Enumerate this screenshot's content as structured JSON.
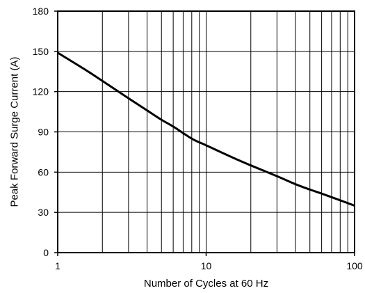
{
  "chart_data": {
    "type": "line",
    "title": "",
    "xlabel": "Number of Cycles at 60 Hz",
    "ylabel": "Peak Forward Surge Current (A)",
    "xscale": "log",
    "xlim": [
      1,
      100
    ],
    "ylim": [
      0,
      180
    ],
    "grid": true,
    "x_ticks": [
      "1",
      "10",
      "100"
    ],
    "y_ticks": [
      "0",
      "30",
      "60",
      "90",
      "120",
      "150",
      "180"
    ],
    "series": [
      {
        "x": [
          1,
          1.5,
          2,
          3,
          4,
          5,
          6,
          8,
          10,
          15,
          20,
          30,
          40,
          50,
          60,
          80,
          100
        ],
        "y": [
          149,
          137,
          128,
          115,
          106,
          99,
          94,
          85,
          80,
          71,
          65,
          57,
          51,
          47,
          44,
          39,
          35
        ]
      }
    ]
  }
}
